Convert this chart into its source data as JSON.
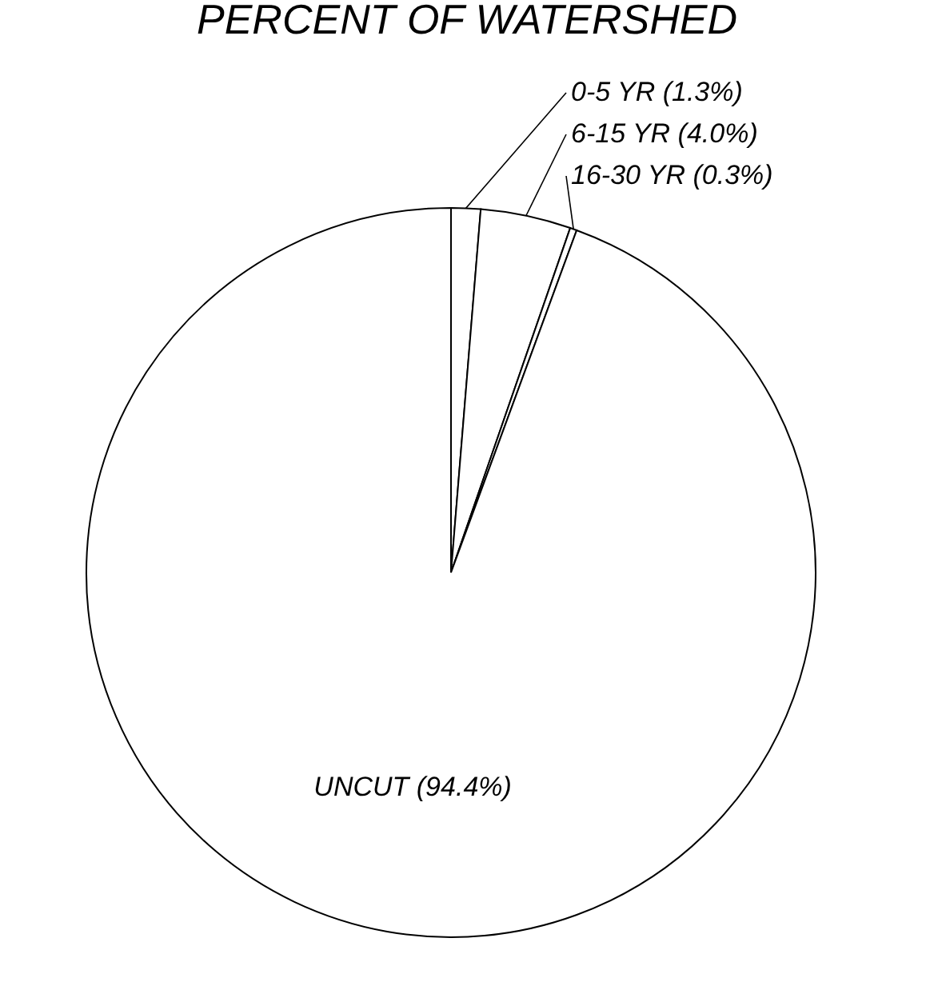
{
  "chart_data": {
    "type": "pie",
    "title": "PERCENT OF WATERSHED",
    "categories": [
      "0-5 YR",
      "6-15 YR",
      "16-30 YR",
      "UNCUT"
    ],
    "values": [
      1.3,
      4.0,
      0.3,
      94.4
    ],
    "value_labels": [
      "(1.3%)",
      "(4.0%)",
      "(0.3%)",
      "(94.4%)"
    ],
    "colors": [
      "#ffffff",
      "#ffffff",
      "#ffffff",
      "#ffffff"
    ],
    "legend": false
  }
}
